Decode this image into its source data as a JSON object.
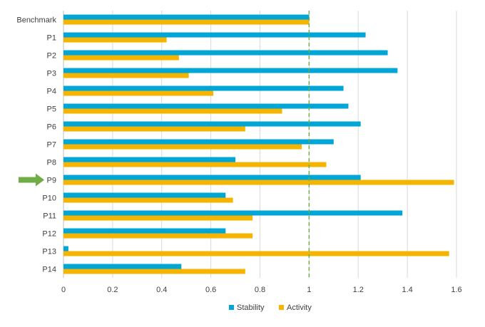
{
  "chart_data": {
    "type": "bar",
    "orientation": "horizontal",
    "categories": [
      "Benchmark",
      "P1",
      "P2",
      "P3",
      "P4",
      "P5",
      "P6",
      "P7",
      "P8",
      "P9",
      "P10",
      "P11",
      "P12",
      "P13",
      "P14"
    ],
    "series": [
      {
        "name": "Stability",
        "color": "#00A6D6",
        "values": [
          1.0,
          1.23,
          1.32,
          1.36,
          1.14,
          1.16,
          1.21,
          1.1,
          0.7,
          1.21,
          0.66,
          1.38,
          0.66,
          0.02,
          0.48
        ]
      },
      {
        "name": "Activity",
        "color": "#F5B400",
        "values": [
          1.0,
          0.42,
          0.47,
          0.51,
          0.61,
          0.89,
          0.74,
          0.97,
          1.07,
          1.59,
          0.69,
          0.77,
          0.77,
          1.57,
          0.74
        ]
      }
    ],
    "xlim": [
      0,
      1.6
    ],
    "xticks": [
      "0",
      "0.2",
      "0.4",
      "0.6",
      "0.8",
      "1",
      "1.2",
      "1.4",
      "1.6"
    ],
    "xtick_values": [
      0,
      0.2,
      0.4,
      0.6,
      0.8,
      1.0,
      1.2,
      1.4,
      1.6
    ],
    "reference_line": {
      "x": 1.0,
      "style": "dashed",
      "color": "#70AD47"
    },
    "highlight": {
      "category": "P9",
      "marker": "arrow",
      "color": "#70AD47"
    },
    "grid": "vertical",
    "legend_position": "bottom-center",
    "title": "",
    "xlabel": "",
    "ylabel": ""
  }
}
